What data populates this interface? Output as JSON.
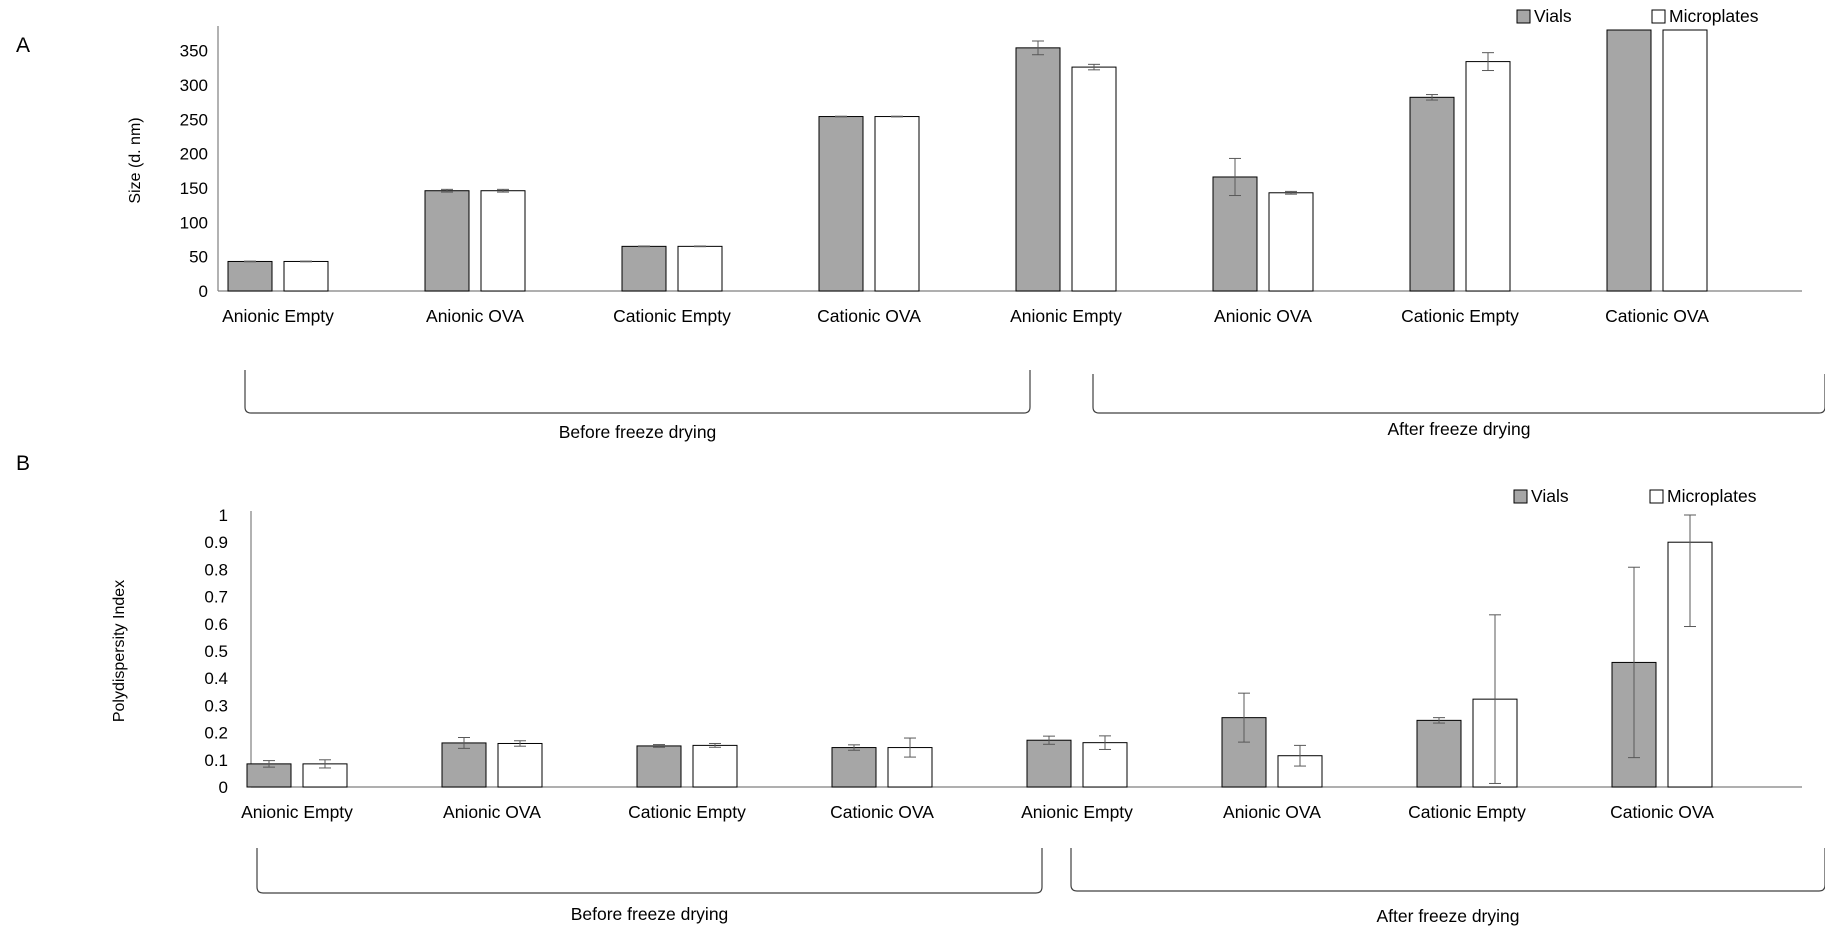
{
  "chart_data": [
    {
      "panel_label": "A",
      "type": "bar",
      "ylabel": "Size (d. nm)",
      "ylim": [
        0,
        380
      ],
      "yticks": [
        0,
        50,
        100,
        150,
        200,
        250,
        300,
        350
      ],
      "grid": false,
      "legend_position": "top-right",
      "categories": [
        "Anionic Empty",
        "Anionic OVA",
        "Cationic Empty",
        "Cationic OVA",
        "Anionic Empty",
        "Anionic OVA",
        "Cationic Empty",
        "Cationic OVA"
      ],
      "groups": [
        {
          "label": "Before freeze drying",
          "from": 0,
          "to": 3
        },
        {
          "label": "After freeze drying",
          "from": 4,
          "to": 7
        }
      ],
      "series": [
        {
          "name": "Vials",
          "color": "#a6a6a6",
          "values": [
            43,
            146,
            65,
            254,
            354,
            166,
            282,
            380
          ],
          "errors": [
            0.5,
            2,
            0.5,
            0.5,
            10,
            27,
            4,
            0
          ]
        },
        {
          "name": "Microplates",
          "color": "#ffffff",
          "values": [
            43,
            146,
            65,
            254,
            326,
            143,
            334,
            380
          ],
          "errors": [
            0.5,
            2,
            0.5,
            0.5,
            4,
            2,
            13,
            0
          ]
        }
      ]
    },
    {
      "panel_label": "B",
      "type": "bar",
      "ylabel": "Polydispersity Index",
      "ylim": [
        0,
        1
      ],
      "yticks": [
        0,
        0.1,
        0.2,
        0.3,
        0.4,
        0.5,
        0.6,
        0.7,
        0.8,
        0.9,
        1
      ],
      "grid": false,
      "legend_position": "top-right",
      "categories": [
        "Anionic Empty",
        "Anionic OVA",
        "Cationic Empty",
        "Cationic OVA",
        "Anionic Empty",
        "Anionic OVA",
        "Cationic Empty",
        "Cationic OVA"
      ],
      "groups": [
        {
          "label": "Before freeze drying",
          "from": 0,
          "to": 3
        },
        {
          "label": "After freeze drying",
          "from": 4,
          "to": 7
        }
      ],
      "series": [
        {
          "name": "Vials",
          "color": "#a6a6a6",
          "values": [
            0.085,
            0.162,
            0.151,
            0.145,
            0.172,
            0.255,
            0.245,
            0.458
          ],
          "errors": [
            0.012,
            0.02,
            0.005,
            0.01,
            0.015,
            0.09,
            0.01,
            0.35
          ]
        },
        {
          "name": "Microplates",
          "color": "#ffffff",
          "values": [
            0.085,
            0.16,
            0.153,
            0.145,
            0.163,
            0.115,
            0.323,
            0.9
          ],
          "errors": [
            0.015,
            0.01,
            0.007,
            0.035,
            0.025,
            0.038,
            0.31,
            0.31
          ]
        }
      ]
    }
  ]
}
